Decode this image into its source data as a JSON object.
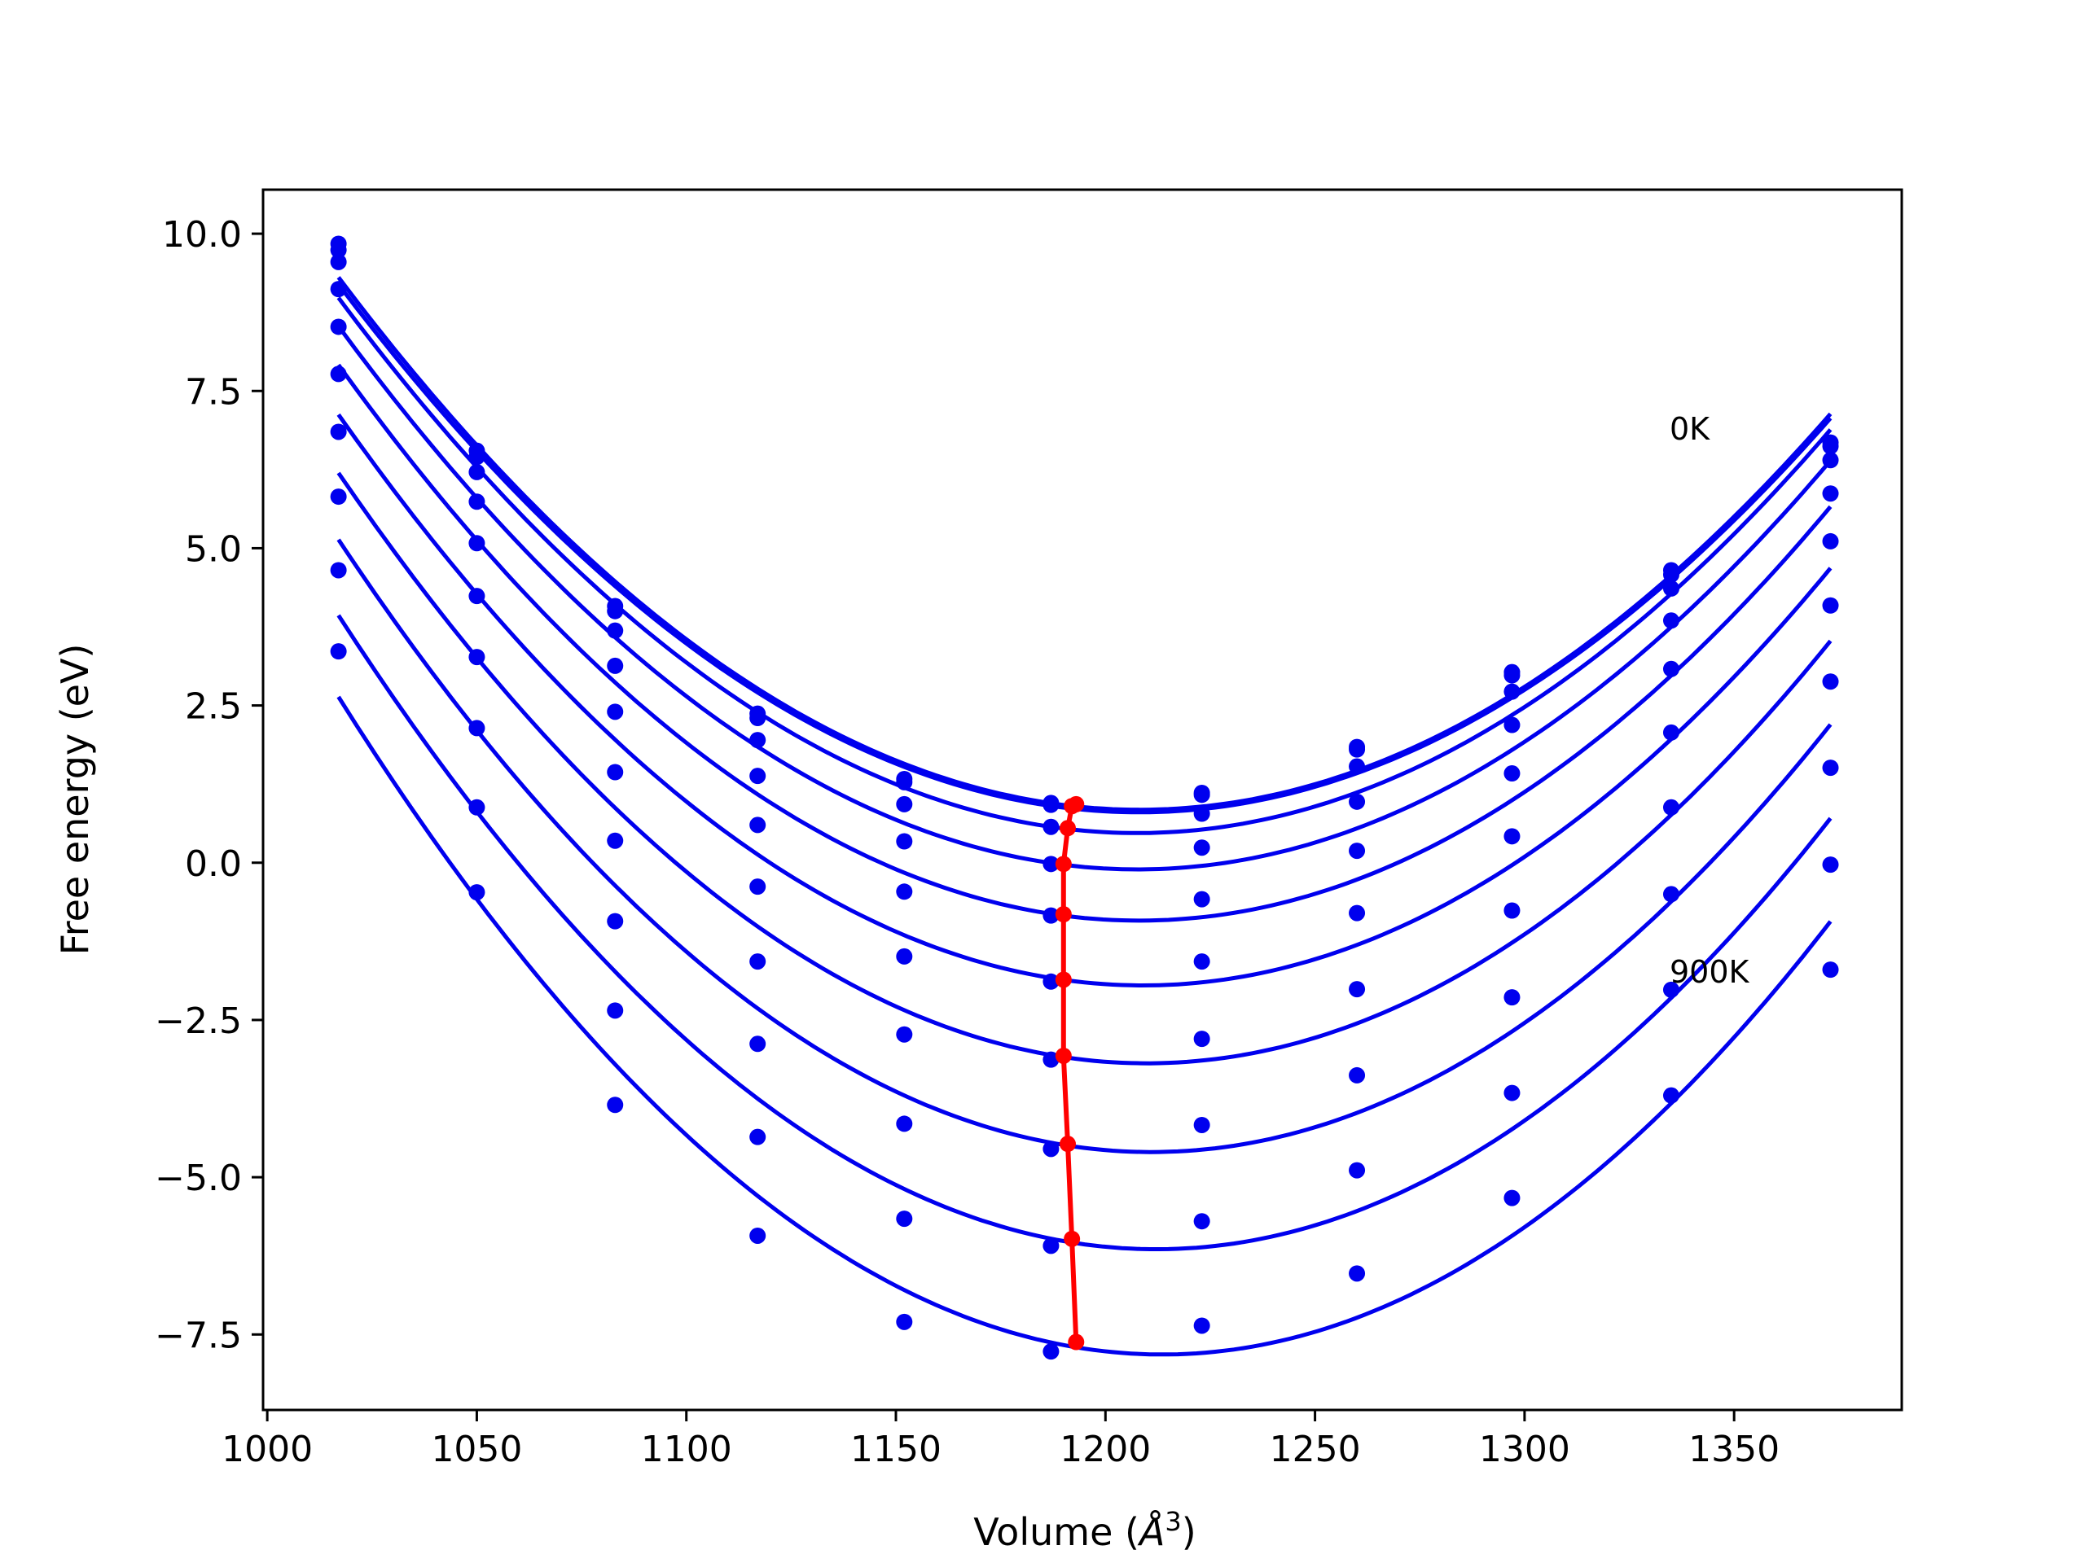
{
  "chart_data": {
    "type": "line",
    "title": "",
    "xlabel": "Volume (",
    "xlabel_symbol": "Å",
    "xlabel_exponent": "3",
    "xlabel_close": ")",
    "ylabel": "Free energy (eV)",
    "xlim": [
      999,
      1390
    ],
    "ylim": [
      -8.7,
      10.7
    ],
    "xticks": [
      1000,
      1050,
      1100,
      1150,
      1200,
      1250,
      1300,
      1350
    ],
    "xtick_labels": [
      "1000",
      "1050",
      "1100",
      "1150",
      "1200",
      "1250",
      "1300",
      "1350"
    ],
    "yticks": [
      10.0,
      7.5,
      5.0,
      2.5,
      0.0,
      -2.5,
      -5.0,
      -7.5
    ],
    "ytick_labels": [
      "10.0",
      "7.5",
      "5.0",
      "2.5",
      "0.0",
      "−2.5",
      "−5.0",
      "−7.5"
    ],
    "grid": false,
    "legend": "none",
    "annotations": [
      {
        "text": "0K",
        "x": 1334,
        "y": 6.8
      },
      {
        "text": "900K",
        "x": 1334,
        "y": -1.8
      }
    ],
    "volumes": [
      1017,
      1050,
      1083,
      1117,
      1152,
      1187,
      1223,
      1260,
      1297,
      1335,
      1373
    ],
    "series": [
      {
        "name": "",
        "color": "#0000ee",
        "values": [
          9.84,
          6.55,
          4.08,
          2.37,
          1.33,
          0.95,
          1.11,
          1.84,
          3.03,
          4.65,
          6.68
        ]
      },
      {
        "name": "",
        "color": "#0000ee",
        "values": [
          9.74,
          6.45,
          4.0,
          2.3,
          1.28,
          0.92,
          1.08,
          1.8,
          2.98,
          4.58,
          6.62
        ]
      },
      {
        "name": "",
        "color": "#0000ee",
        "values": [
          9.55,
          6.21,
          3.69,
          1.95,
          0.93,
          0.57,
          0.78,
          1.53,
          2.72,
          4.36,
          6.4
        ]
      },
      {
        "name": "",
        "color": "#0000ee",
        "values": [
          9.12,
          5.74,
          3.13,
          1.38,
          0.34,
          -0.02,
          0.24,
          0.97,
          2.19,
          3.85,
          5.87
        ]
      },
      {
        "name": "",
        "color": "#0000ee",
        "values": [
          8.52,
          5.08,
          2.4,
          0.6,
          -0.46,
          -0.84,
          -0.58,
          0.19,
          1.42,
          3.08,
          5.11
        ]
      },
      {
        "name": "",
        "color": "#0000ee",
        "values": [
          7.77,
          4.24,
          1.44,
          -0.38,
          -1.49,
          -1.89,
          -1.57,
          -0.8,
          0.42,
          2.07,
          4.09
        ]
      },
      {
        "name": "",
        "color": "#0000ee",
        "values": [
          6.85,
          3.27,
          0.35,
          -1.57,
          -2.73,
          -3.13,
          -2.8,
          -2.01,
          -0.76,
          0.88,
          2.88
        ]
      },
      {
        "name": "",
        "color": "#0000ee",
        "values": [
          5.82,
          2.14,
          -0.93,
          -2.88,
          -4.15,
          -4.55,
          -4.17,
          -3.38,
          -2.14,
          -0.5,
          1.51
        ]
      },
      {
        "name": "",
        "color": "#0000ee",
        "values": [
          4.65,
          0.88,
          -2.35,
          -4.36,
          -5.66,
          -6.09,
          -5.7,
          -4.89,
          -3.66,
          -2.02,
          -0.03
        ]
      },
      {
        "name": "",
        "color": "#0000ee",
        "values": [
          3.36,
          -0.47,
          -3.85,
          -5.93,
          -7.3,
          -7.77,
          -7.36,
          -6.53,
          -5.33,
          -3.7,
          -1.7
        ]
      }
    ],
    "minima": {
      "name": "",
      "color": "#ff0000",
      "x": [
        1193,
        1192,
        1191,
        1190,
        1190,
        1190,
        1190,
        1191,
        1192,
        1193
      ],
      "y": [
        0.93,
        0.9,
        0.55,
        -0.02,
        -0.82,
        -1.86,
        -3.07,
        -4.47,
        -5.98,
        -7.62
      ]
    }
  }
}
